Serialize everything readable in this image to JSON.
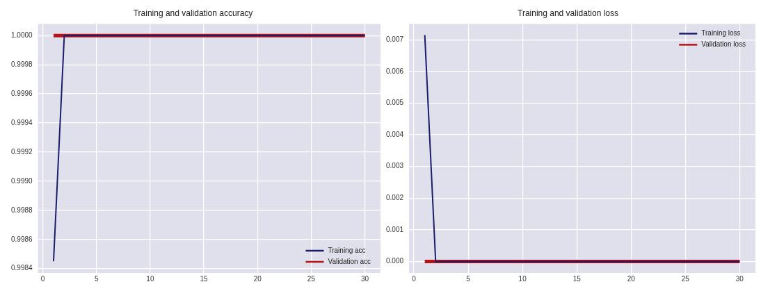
{
  "chart_data": [
    {
      "type": "line",
      "title": "Training and validation accuracy",
      "x": [
        1,
        2,
        3,
        4,
        5,
        6,
        7,
        8,
        9,
        10,
        11,
        12,
        13,
        14,
        15,
        16,
        17,
        18,
        19,
        20,
        21,
        22,
        23,
        24,
        25,
        26,
        27,
        28,
        29,
        30
      ],
      "series": [
        {
          "name": "Training acc",
          "color": "#1c1c6b",
          "values": [
            0.99845,
            1,
            1,
            1,
            1,
            1,
            1,
            1,
            1,
            1,
            1,
            1,
            1,
            1,
            1,
            1,
            1,
            1,
            1,
            1,
            1,
            1,
            1,
            1,
            1,
            1,
            1,
            1,
            1,
            1
          ]
        },
        {
          "name": "Validation acc",
          "color": "#b3131b",
          "values": [
            1,
            1,
            1,
            1,
            1,
            1,
            1,
            1,
            1,
            1,
            1,
            1,
            1,
            1,
            1,
            1,
            1,
            1,
            1,
            1,
            1,
            1,
            1,
            1,
            1,
            1,
            1,
            1,
            1,
            1
          ]
        }
      ],
      "xlim": [
        -0.45,
        31.45
      ],
      "xticks": [
        0,
        5,
        10,
        15,
        20,
        25,
        30
      ],
      "ylim": [
        0.99837,
        1.00008
      ],
      "yticks": [
        0.9984,
        0.9986,
        0.9988,
        {
          "value": 0.999,
          "label": "0.9990"
        },
        0.9992,
        0.9994,
        0.9996,
        0.9998,
        {
          "value": 1,
          "label": "1.0000"
        }
      ],
      "grid": true,
      "legend": "bottom right"
    },
    {
      "type": "line",
      "title": "Training and validation loss",
      "x": [
        1,
        2,
        3,
        4,
        5,
        6,
        7,
        8,
        9,
        10,
        11,
        12,
        13,
        14,
        15,
        16,
        17,
        18,
        19,
        20,
        21,
        22,
        23,
        24,
        25,
        26,
        27,
        28,
        29,
        30
      ],
      "series": [
        {
          "name": "Training loss",
          "color": "#1c1c6b",
          "values": [
            0.00715,
            0,
            0,
            0,
            0,
            0,
            0,
            0,
            0,
            0,
            0,
            0,
            0,
            0,
            0,
            0,
            0,
            0,
            0,
            0,
            0,
            0,
            0,
            0,
            0,
            0,
            0,
            0,
            0,
            0
          ]
        },
        {
          "name": "Validation loss",
          "color": "#b3131b",
          "values": [
            0,
            0,
            0,
            0,
            0,
            0,
            0,
            0,
            0,
            0,
            0,
            0,
            0,
            0,
            0,
            0,
            0,
            0,
            0,
            0,
            0,
            0,
            0,
            0,
            0,
            0,
            0,
            0,
            0,
            0
          ]
        }
      ],
      "xlim": [
        -0.45,
        31.45
      ],
      "xticks": [
        0,
        5,
        10,
        15,
        20,
        25,
        30
      ],
      "ylim": [
        -0.00036,
        0.0075
      ],
      "yticks": [
        {
          "value": 0,
          "label": "0.000"
        },
        0.001,
        0.002,
        0.003,
        0.004,
        0.005,
        0.006,
        0.007
      ],
      "grid": true,
      "legend": "top right"
    }
  ]
}
